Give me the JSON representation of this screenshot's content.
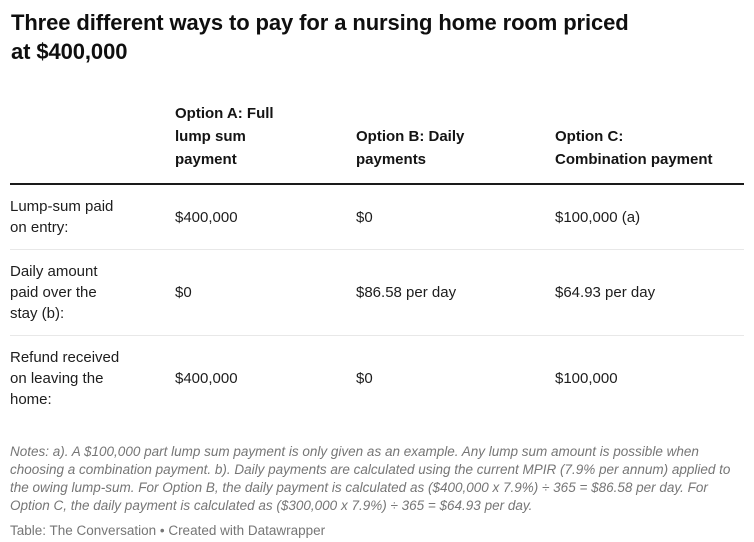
{
  "chart_data": {
    "type": "table",
    "title": "Three different ways to pay for a nursing home room priced\nat $400,000",
    "columns": [
      "",
      "Option A: Full\nlump sum\npayment",
      "Option B: Daily\npayments",
      "Option C:\nCombination payment"
    ],
    "rows": [
      {
        "label": "Lump-sum paid\non entry:",
        "values": [
          "$400,000",
          "$0",
          "$100,000 (a)"
        ]
      },
      {
        "label": "Daily amount\npaid over the\nstay (b):",
        "values": [
          "$0",
          "$86.58 per day",
          "$64.93 per day"
        ]
      },
      {
        "label": "Refund received\non leaving the\nhome:",
        "values": [
          "$400,000",
          "$0",
          "$100,000"
        ]
      }
    ],
    "notes": "Notes: a). A $100,000 part lump sum payment is only given as an example. Any lump sum amount is possible when choosing a combination payment. b). Daily payments are calculated using the current MPIR (7.9% per annum) applied to the owing lump-sum. For Option B, the daily payment is calculated as ($400,000 x 7.9%) ÷ 365 = $86.58 per day. For Option C, the daily payment is calculated as ($300,000 x 7.9%) ÷ 365 = $64.93 per day.",
    "footer": "Table: The Conversation • Created with Datawrapper",
    "layout_hints": {
      "grid": "horizontal rules only",
      "header_rule_color": "#1a1a1a",
      "row_divider_color": "#e8e8e8",
      "notes_color": "#767676",
      "text_color": "#1d1d1d",
      "background": "#ffffff"
    }
  }
}
